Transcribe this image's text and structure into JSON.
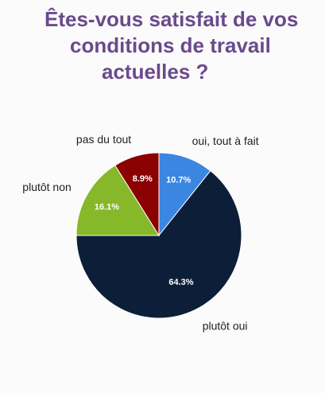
{
  "title_lines": [
    "Êtes-vous satisfait de vos",
    "conditions de travail",
    "actuelles ?"
  ],
  "colors": {
    "title": "#6a4a8c"
  },
  "chart_data": {
    "type": "pie",
    "title": "Êtes-vous satisfait de vos conditions de travail actuelles ?",
    "start_angle_deg": 0,
    "direction": "clockwise",
    "slices": [
      {
        "label": "oui, tout à fait",
        "value": 10.7,
        "display": "10.7%",
        "color": "#3a86e0"
      },
      {
        "label": "plutôt oui",
        "value": 64.3,
        "display": "64.3%",
        "color": "#0d1f38"
      },
      {
        "label": "plutôt non",
        "value": 16.1,
        "display": "16.1%",
        "color": "#86b82a"
      },
      {
        "label": "pas du tout",
        "value": 8.9,
        "display": "8.9%",
        "color": "#8b0000"
      }
    ]
  }
}
